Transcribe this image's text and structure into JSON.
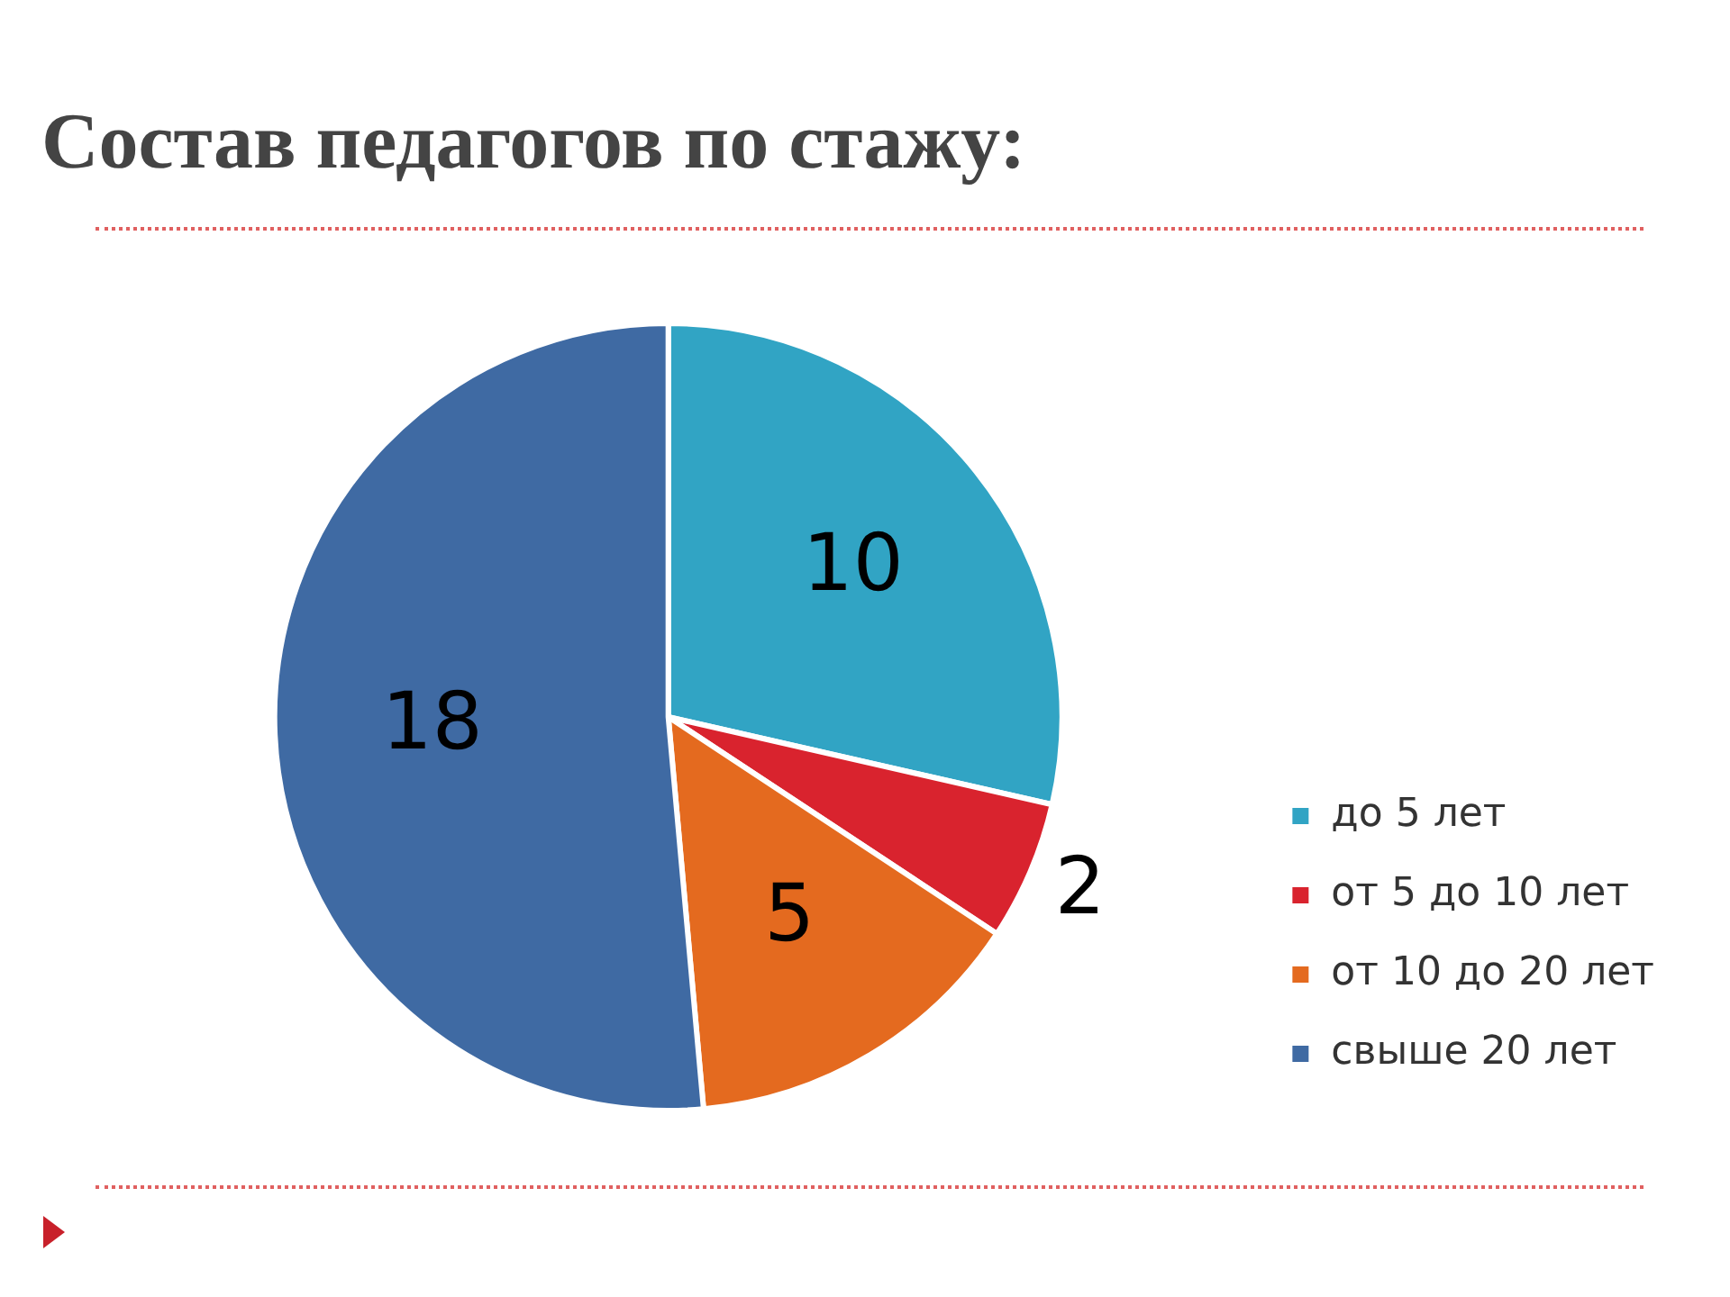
{
  "chart_data": {
    "type": "pie",
    "title": "Состав педагогов по стажу:",
    "categories": [
      "до 5 лет",
      "от 5 до 10 лет",
      "от 10 до 20 лет",
      "свыше 20 лет"
    ],
    "values": [
      10,
      2,
      5,
      18
    ],
    "colors": [
      "#31a4c4",
      "#d9232e",
      "#e46a1f",
      "#3f6aa3"
    ],
    "data_labels": true,
    "legend": "right"
  }
}
